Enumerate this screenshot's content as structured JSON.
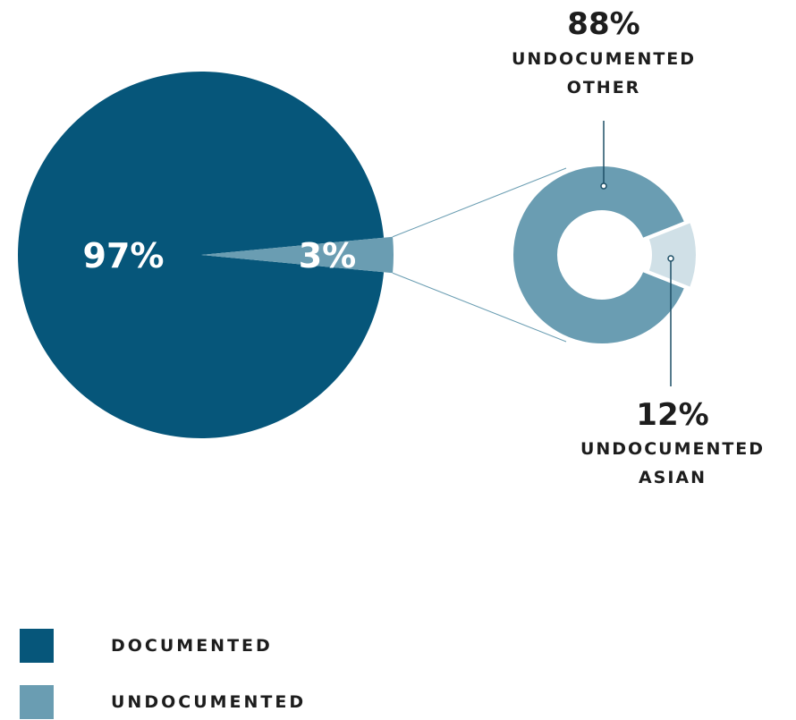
{
  "chart_data": [
    {
      "type": "pie",
      "slices": [
        {
          "label": "DOCUMENTED",
          "value": 97,
          "display": "97%",
          "color": "#06567a"
        },
        {
          "label": "UNDOCUMENTED",
          "value": 3,
          "display": "3%",
          "color": "#6a9db2"
        }
      ]
    },
    {
      "type": "pie",
      "style": "donut",
      "subset_of": "UNDOCUMENTED",
      "slices": [
        {
          "label_lines": [
            "UNDOCUMENTED",
            "OTHER"
          ],
          "value": 88,
          "display": "88%",
          "color": "#6a9db2"
        },
        {
          "label_lines": [
            "UNDOCUMENTED",
            "ASIAN"
          ],
          "value": 12,
          "display": "12%",
          "color": "#d0e0e7"
        }
      ]
    }
  ],
  "legend": [
    {
      "label": "DOCUMENTED",
      "color": "#06567a"
    },
    {
      "label": "UNDOCUMENTED",
      "color": "#6a9db2"
    }
  ]
}
